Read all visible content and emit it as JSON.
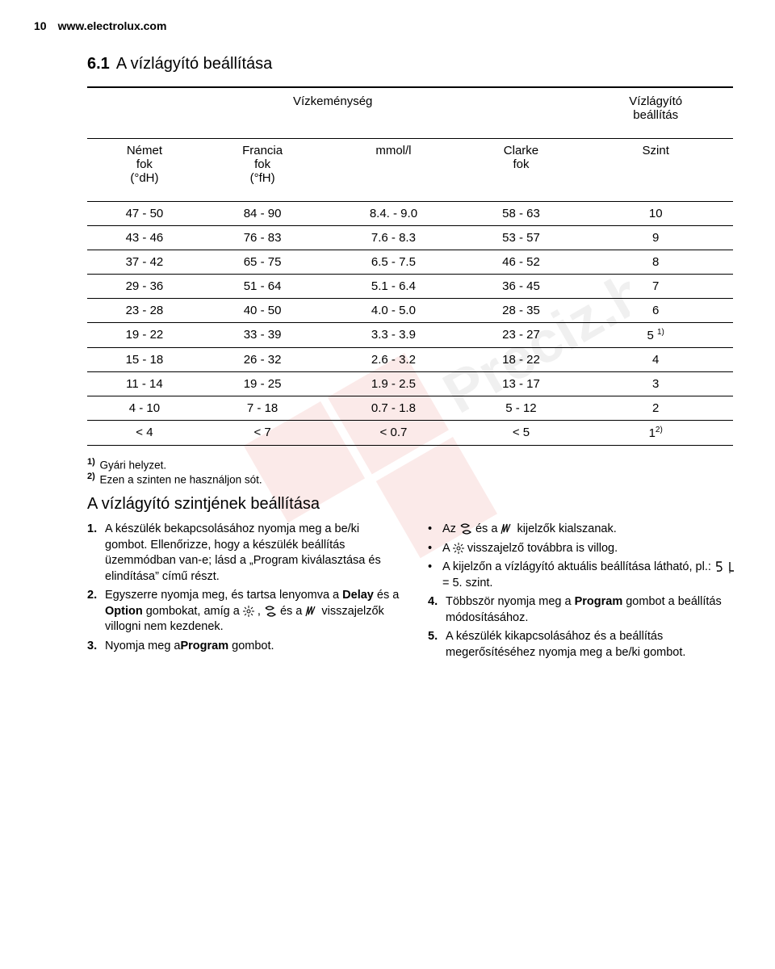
{
  "header": {
    "page_num": "10",
    "url": "www.electrolux.com"
  },
  "section": {
    "num": "6.1",
    "title": "A vízlágyító beállítása"
  },
  "table": {
    "type": "table",
    "super_headers": {
      "span_left": "Vízkeménység",
      "right": "Vízlágyító\nbeállítás"
    },
    "columns": [
      "Német\nfok\n(°dH)",
      "Francia\nfok\n(°fH)",
      "mmol/l",
      "Clarke\nfok",
      "Szint"
    ],
    "col_widths_pct": [
      20,
      20,
      20,
      20,
      20
    ],
    "rows": [
      [
        "47 - 50",
        "84 - 90",
        "8.4. - 9.0",
        "58 - 63",
        "10"
      ],
      [
        "43 - 46",
        "76 - 83",
        "7.6 - 8.3",
        "53 - 57",
        "9"
      ],
      [
        "37 - 42",
        "65 - 75",
        "6.5 - 7.5",
        "46 - 52",
        "8"
      ],
      [
        "29 - 36",
        "51 - 64",
        "5.1 - 6.4",
        "36 - 45",
        "7"
      ],
      [
        "23 - 28",
        "40 - 50",
        "4.0 - 5.0",
        "28 - 35",
        "6"
      ],
      [
        "19 - 22",
        "33 - 39",
        "3.3 - 3.9",
        "23 - 27",
        "5 "
      ],
      [
        "15 - 18",
        "26 - 32",
        "2.6 - 3.2",
        "18 - 22",
        "4"
      ],
      [
        "11 - 14",
        "19 - 25",
        "1.9 - 2.5",
        "13 - 17",
        "3"
      ],
      [
        "4 - 10",
        "7 - 18",
        "0.7 - 1.8",
        "5 - 12",
        "2"
      ],
      [
        "< 4",
        "< 7",
        "< 0.7",
        "< 5",
        "1"
      ]
    ],
    "row_footnote_sup": {
      "5": "1)",
      "9": "2)"
    },
    "border_color": "#000000",
    "fontsize": 15
  },
  "footnotes": [
    {
      "mark": "1)",
      "text": "Gyári helyzet."
    },
    {
      "mark": "2)",
      "text": "Ezen a szinten ne használjon sót."
    }
  ],
  "subheading": "A vízlágyító szintjének beállítása",
  "left_list": [
    {
      "n": "1.",
      "text": "A készülék bekapcsolásához nyomja meg a be/ki gombot. Ellenőrizze, hogy a készülék beállítás üzemmódban van-e; lásd a „Program kiválasztása és elindítása” című részt."
    },
    {
      "n": "2.",
      "text_pre": "Egyszerre nyomja meg, és tartsa lenyomva a ",
      "bold1": "Delay",
      "mid1": " és a ",
      "bold2": "Option",
      "mid2": " gombokat, amíg a ",
      "icon1": "sun",
      "mid3": " , ",
      "icon2": "salt",
      "mid4": " és a ",
      "icon3": "rinse",
      "text_post": " visszajelzők villogni nem kezdenek."
    },
    {
      "n": "3.",
      "text_pre": "Nyomja meg a",
      "bold1": "Program",
      "text_post": " gombot."
    }
  ],
  "right_list": [
    {
      "bullet": "•",
      "text_pre": "Az ",
      "icon1": "salt",
      "mid1": " és a ",
      "icon2": "rinse",
      "text_post": " kijelzők kialszanak."
    },
    {
      "bullet": "•",
      "text_pre": "A ",
      "icon1": "sun",
      "text_post": " visszajelző továbbra is villog."
    },
    {
      "bullet": "•",
      "text_pre": "A kijelzőn a vízlágyító aktuális beállítása látható, pl.: ",
      "icon1": "five",
      "mid1": " ",
      "icon2": "bar",
      "text_post": " = 5. szint."
    },
    {
      "n": "4.",
      "text_pre": "Többször nyomja meg a ",
      "bold1": "Program",
      "text_post": " gombot a beállítás módosításához."
    },
    {
      "n": "5.",
      "text": "A készülék kikapcsolásához és a beállítás megerősítéséhez nyomja meg a be/ki gombot."
    }
  ],
  "icons": {
    "sun": "✳",
    "salt": "S-shape",
    "rinse": "rinse",
    "five": "5-seg",
    "bar": "L-seg"
  },
  "watermark": {
    "text": "Preciz.hu",
    "blocks_color": "#e03a2f",
    "text_color": "#7a7a7a"
  }
}
